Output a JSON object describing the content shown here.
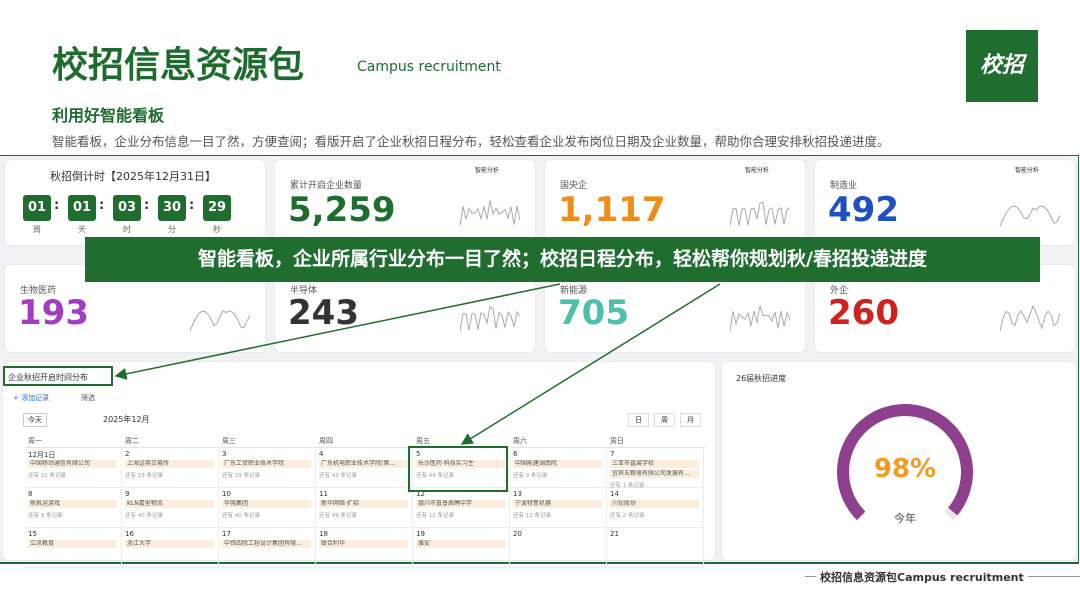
{
  "header": {
    "title": "校招信息资源包",
    "subtitle": "Campus recruitment",
    "logo": "校招",
    "section": "利用好智能看板",
    "description": "智能看板，企业分布信息一目了然，方便查阅；看版开启了企业秋招日程分布，轻松查看企业发布岗位日期及企业数量，帮助你合理安排秋招投递进度。"
  },
  "countdown": {
    "label": "秋招倒计时【2025年12月31日】",
    "digits": [
      "01",
      "01",
      "03",
      "30",
      "29"
    ],
    "units": [
      "周",
      "天",
      "时",
      "分",
      "秒"
    ]
  },
  "badge": "智能分析",
  "cards": [
    {
      "label": "累计开启企业数量",
      "value": "5,259",
      "color": "#1f6e30"
    },
    {
      "label": "国央企",
      "value": "1,117",
      "color": "#f08c1a"
    },
    {
      "label": "制造业",
      "value": "492",
      "color": "#1f4fc1"
    },
    {
      "label": "生物医药",
      "value": "193",
      "color": "#a23cc2"
    },
    {
      "label": "半导体",
      "value": "243",
      "color": "#333333"
    },
    {
      "label": "新能源",
      "value": "705",
      "color": "#4cc0a8"
    },
    {
      "label": "外企",
      "value": "260",
      "color": "#d0211d"
    }
  ],
  "banner": "智能看板，企业所属行业分布一目了然；校招日程分布，轻松帮你规划秋/春招投递进度",
  "calendar": {
    "title": "企业秋招开启时间分布",
    "add": "+ 添加记录",
    "filter": "筛选",
    "today": "今天",
    "month": "2025年12月",
    "views": [
      "日",
      "周",
      "月"
    ],
    "weekdays": [
      "周一",
      "周二",
      "周三",
      "周四",
      "周五",
      "周六",
      "周日"
    ],
    "cells": [
      {
        "day": "12月1日",
        "events": [
          "中国移动通信有限公司"
        ],
        "more": "还有 32 条记录"
      },
      {
        "day": "2",
        "events": [
          "上海证券交易所"
        ],
        "more": "还有 19 条记录"
      },
      {
        "day": "3",
        "events": [
          "广东工贸职业技术学院"
        ],
        "more": "还有 29 条记录"
      },
      {
        "day": "4",
        "events": [
          "广东机电职业技术学院(第..."
        ],
        "more": "还有 43 条记录"
      },
      {
        "day": "5",
        "events": [
          "长沙医药·科技实习生"
        ],
        "more": "还有 44 条记录"
      },
      {
        "day": "6",
        "events": [
          "中国能建湖南院"
        ],
        "more": "还有 9 条记录"
      },
      {
        "day": "7",
        "events": [
          "三亚市直属学校",
          "宜宾五粮液有限公司发展有..."
        ],
        "more": "还有 1 条记录"
      },
      {
        "day": "8",
        "events": [
          "帆帆运游戏"
        ],
        "more": "还有 8 条记录"
      },
      {
        "day": "9",
        "events": [
          "KLN嘉里物流"
        ],
        "more": "还有 40 条记录"
      },
      {
        "day": "10",
        "events": [
          "华强集团"
        ],
        "more": "还有 40 条记录"
      },
      {
        "day": "11",
        "events": [
          "新华网络·扩招"
        ],
        "more": "还有 49 条记录"
      },
      {
        "day": "12",
        "events": [
          "银川市直普高聘中学"
        ],
        "more": "还有 11 条记录"
      },
      {
        "day": "13",
        "events": [
          "宁波特鲁机器"
        ],
        "more": "还有 12 条记录"
      },
      {
        "day": "14",
        "events": [
          "川仪股份"
        ],
        "more": "还有 2 条记录"
      },
      {
        "day": "15",
        "events": [
          "立讯教育"
        ]
      },
      {
        "day": "16",
        "events": [
          "浙江大学"
        ]
      },
      {
        "day": "17",
        "events": [
          "中铁四院工程设计集团有限..."
        ]
      },
      {
        "day": "18",
        "events": [
          "联合利华"
        ]
      },
      {
        "day": "19",
        "events": [
          "雅安"
        ]
      },
      {
        "day": "20",
        "events": []
      },
      {
        "day": "21",
        "events": []
      }
    ]
  },
  "gauge": {
    "title": "26届秋招进度",
    "value": 98,
    "label": "98%",
    "caption": "今年"
  },
  "footer": "校招信息资源包Campus recruitment"
}
